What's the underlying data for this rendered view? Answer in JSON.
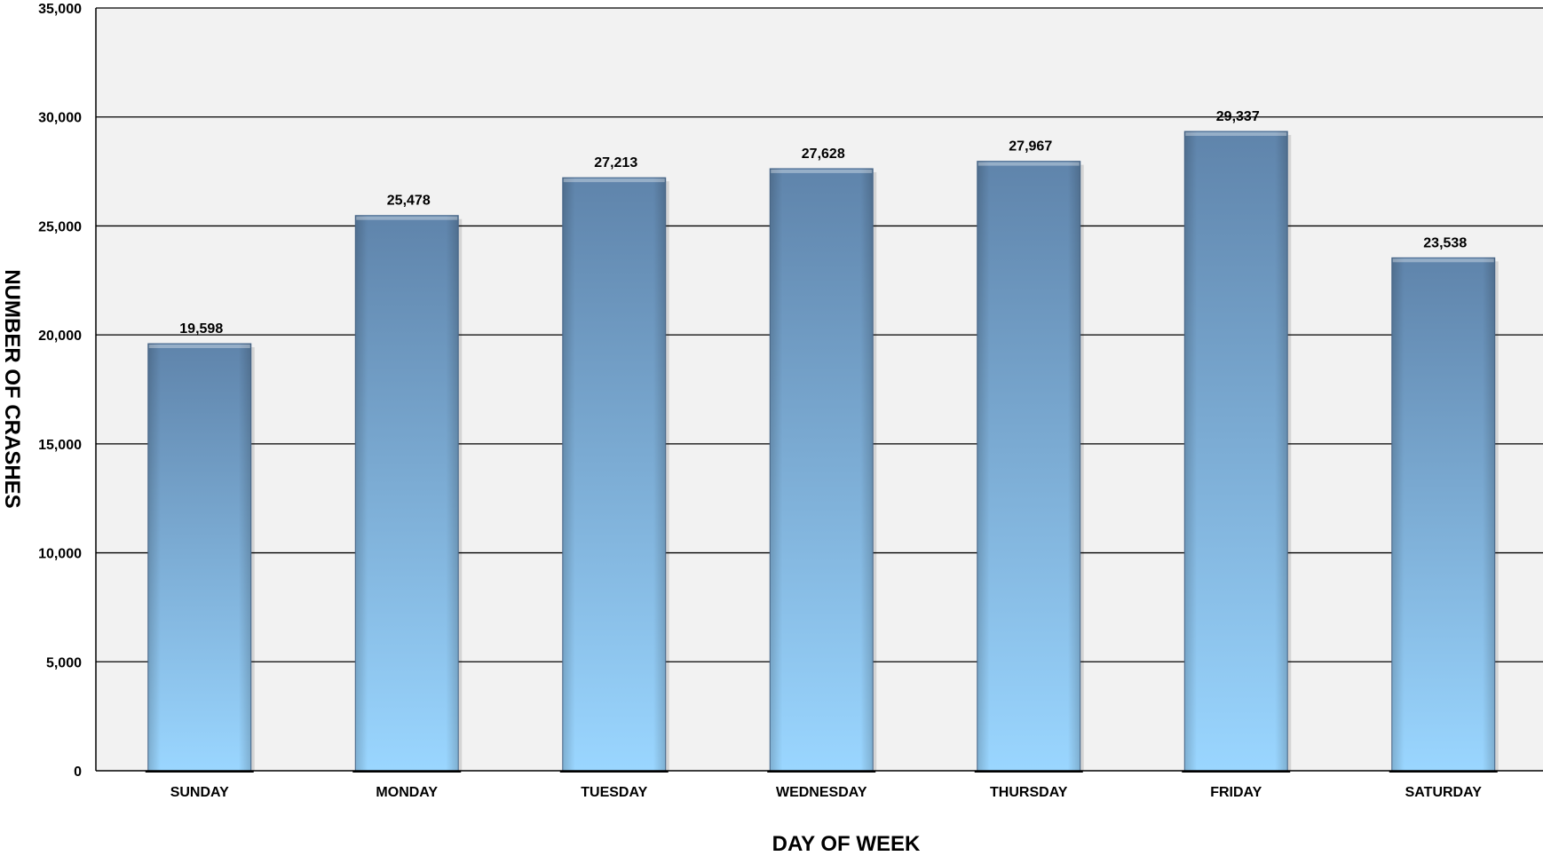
{
  "chart_data": {
    "type": "bar",
    "title": "",
    "xlabel": "DAY OF WEEK",
    "ylabel": "NUMBER OF CRASHES",
    "categories": [
      "SUNDAY",
      "MONDAY",
      "TUESDAY",
      "WEDNESDAY",
      "THURSDAY",
      "FRIDAY",
      "SATURDAY"
    ],
    "values": [
      19598,
      25478,
      27213,
      27628,
      27967,
      29337,
      23538
    ],
    "value_labels": [
      "19,598",
      "25,478",
      "27,213",
      "27,628",
      "27,967",
      "29,337",
      "23,538"
    ],
    "ylim": [
      0,
      35000
    ],
    "yticks": [
      0,
      5000,
      10000,
      15000,
      20000,
      25000,
      30000,
      35000
    ],
    "ytick_labels": [
      "0",
      "5,000",
      "10,000",
      "15,000",
      "20,000",
      "25,000",
      "30,000",
      "35,000"
    ],
    "grid": true,
    "legend": "none",
    "colors": {
      "bar_top": "#5f84ab",
      "bar_bottom": "#9ad6ff",
      "plot_background": "#f2f2f2",
      "gridline": "#000000"
    }
  }
}
